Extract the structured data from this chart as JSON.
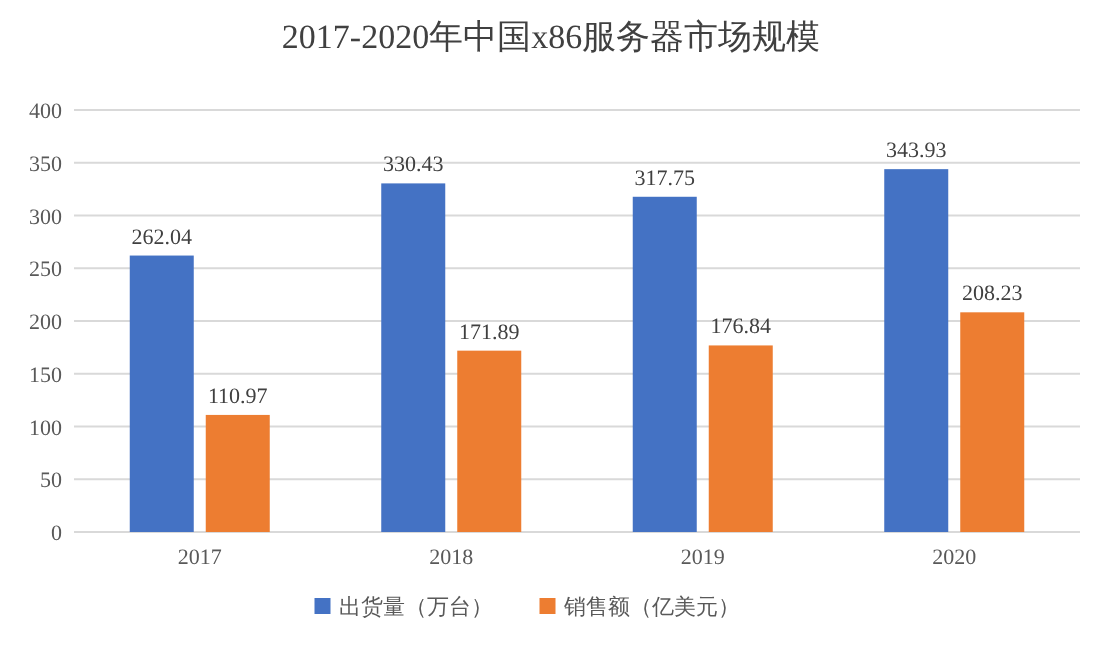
{
  "chart_data": {
    "type": "bar",
    "title": "2017-2020年中国x86服务器市场规模",
    "categories": [
      "2017",
      "2018",
      "2019",
      "2020"
    ],
    "series": [
      {
        "name": "出货量（万台）",
        "color": "#4472c4",
        "values": [
          262.04,
          330.43,
          317.75,
          343.93
        ]
      },
      {
        "name": "销售额（亿美元）",
        "color": "#ed7d31",
        "values": [
          110.97,
          171.89,
          176.84,
          208.23
        ]
      }
    ],
    "ylim": [
      0,
      400
    ],
    "yticks": [
      0,
      50,
      100,
      150,
      200,
      250,
      300,
      350,
      400
    ],
    "grid": "y",
    "legend": "bottom",
    "data_labels": true
  }
}
